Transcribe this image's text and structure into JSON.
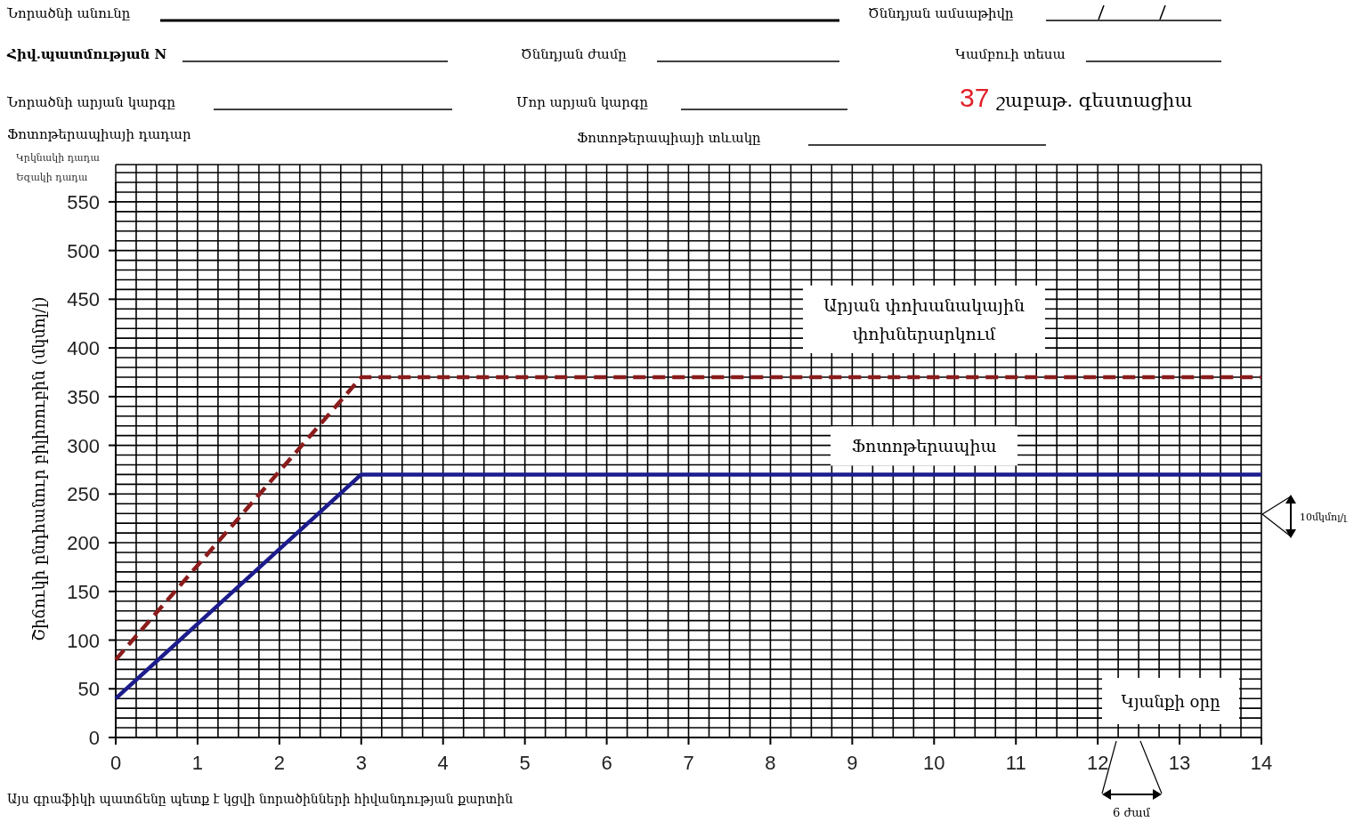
{
  "chart_data": {
    "type": "line",
    "xlabel": "Կյանքի օրը",
    "ylabel": "Շիճուկի ընդհանուր բիլիռուբին (մկմոլ/լ)",
    "x": [
      0,
      3,
      14
    ],
    "series": [
      {
        "name": "Արյան փոխանակային փոխներարկում",
        "color": "#8b1c1c",
        "values": [
          80,
          370,
          370
        ],
        "line_style": "dashed"
      },
      {
        "name": "Ֆոտոթերապիա",
        "color": "#1c1c8c",
        "values": [
          40,
          270,
          270
        ],
        "line_style": "solid"
      }
    ],
    "xlim": [
      0,
      14
    ],
    "xticks": [
      0,
      1,
      2,
      3,
      4,
      5,
      6,
      7,
      8,
      9,
      10,
      11,
      12,
      13,
      14
    ],
    "ylim": [
      0,
      570
    ],
    "yticks": [
      0,
      50,
      100,
      150,
      200,
      250,
      300,
      350,
      400,
      450,
      500,
      550
    ],
    "grid": true,
    "marker": "none",
    "annotations": [
      "Նորածնի անունը",
      "Ծննդյան ամսաթիվը",
      "Հիվ.պատմության N",
      "Ծննդյան ժամը",
      "Կամբուի տեսա",
      "Նորածնի արյան կարգը",
      "Մոր արյան կարգը",
      "37 շաբաթ. գեստացիա",
      "Ֆոտոթերապիայի դադար",
      "Ֆոտոթերապիայի տևակը",
      "Կրկնակի դադա",
      "Եզակի դադա",
      "10մկմոլ/լ",
      "6 ժամ",
      "Այս գրաֆիկի պատճենը պետք է կցվի նորածինների հիվանդության քարտին"
    ]
  }
}
